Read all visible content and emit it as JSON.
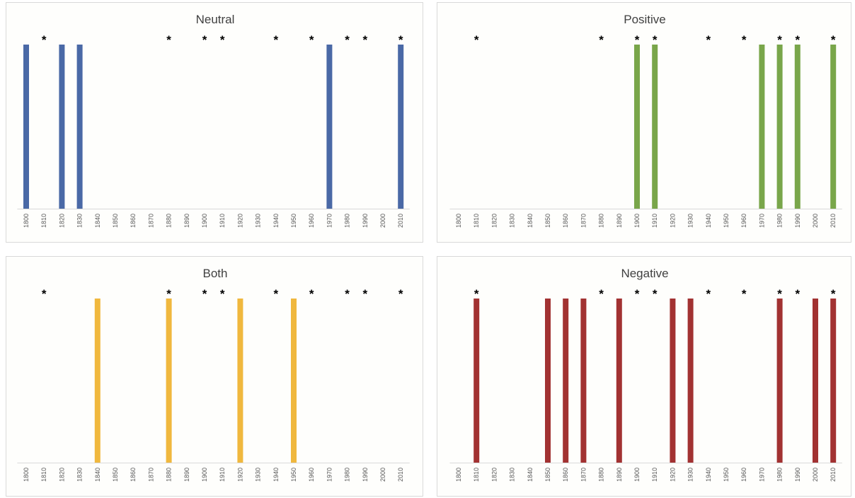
{
  "chart_data": [
    {
      "type": "bar",
      "title": "Neutral",
      "color": "#4a69a6",
      "categories": [
        "1800",
        "1810",
        "1820",
        "1830",
        "1840",
        "1850",
        "1860",
        "1870",
        "1880",
        "1890",
        "1900",
        "1910",
        "1920",
        "1930",
        "1940",
        "1950",
        "1960",
        "1970",
        "1980",
        "1990",
        "2000",
        "2010"
      ],
      "values": [
        1,
        0,
        1,
        1,
        0,
        0,
        0,
        0,
        0,
        0,
        0,
        0,
        0,
        0,
        0,
        0,
        0,
        1,
        0,
        0,
        0,
        1
      ],
      "stars": [
        "1810",
        "1880",
        "1900",
        "1910",
        "1940",
        "1960",
        "1980",
        "1990",
        "2010"
      ],
      "ylim": [
        0,
        1
      ]
    },
    {
      "type": "bar",
      "title": "Positive",
      "color": "#79a64a",
      "categories": [
        "1800",
        "1810",
        "1820",
        "1830",
        "1840",
        "1850",
        "1860",
        "1870",
        "1880",
        "1890",
        "1900",
        "1910",
        "1920",
        "1930",
        "1940",
        "1950",
        "1960",
        "1970",
        "1980",
        "1990",
        "2000",
        "2010"
      ],
      "values": [
        0,
        0,
        0,
        0,
        0,
        0,
        0,
        0,
        0,
        0,
        1,
        1,
        0,
        0,
        0,
        0,
        0,
        1,
        1,
        1,
        0,
        1
      ],
      "stars": [
        "1810",
        "1880",
        "1900",
        "1910",
        "1940",
        "1960",
        "1980",
        "1990",
        "2010"
      ],
      "ylim": [
        0,
        1
      ]
    },
    {
      "type": "bar",
      "title": "Both",
      "color": "#f0b83e",
      "categories": [
        "1800",
        "1810",
        "1820",
        "1830",
        "1840",
        "1850",
        "1860",
        "1870",
        "1880",
        "1890",
        "1900",
        "1910",
        "1920",
        "1930",
        "1940",
        "1950",
        "1960",
        "1970",
        "1980",
        "1990",
        "2000",
        "2010"
      ],
      "values": [
        0,
        0,
        0,
        0,
        1,
        0,
        0,
        0,
        1,
        0,
        0,
        0,
        1,
        0,
        0,
        1,
        0,
        0,
        0,
        0,
        0,
        0
      ],
      "stars": [
        "1810",
        "1880",
        "1900",
        "1910",
        "1940",
        "1960",
        "1980",
        "1990",
        "2010"
      ],
      "ylim": [
        0,
        1
      ]
    },
    {
      "type": "bar",
      "title": "Negative",
      "color": "#a23232",
      "categories": [
        "1800",
        "1810",
        "1820",
        "1830",
        "1840",
        "1850",
        "1860",
        "1870",
        "1880",
        "1890",
        "1900",
        "1910",
        "1920",
        "1930",
        "1940",
        "1950",
        "1960",
        "1970",
        "1980",
        "1990",
        "2000",
        "2010"
      ],
      "values": [
        0,
        1,
        0,
        0,
        0,
        1,
        1,
        1,
        0,
        1,
        0,
        0,
        1,
        1,
        0,
        0,
        0,
        0,
        1,
        0,
        1,
        1
      ],
      "stars": [
        "1810",
        "1880",
        "1900",
        "1910",
        "1940",
        "1960",
        "1980",
        "1990",
        "2010"
      ],
      "ylim": [
        0,
        1
      ]
    }
  ]
}
